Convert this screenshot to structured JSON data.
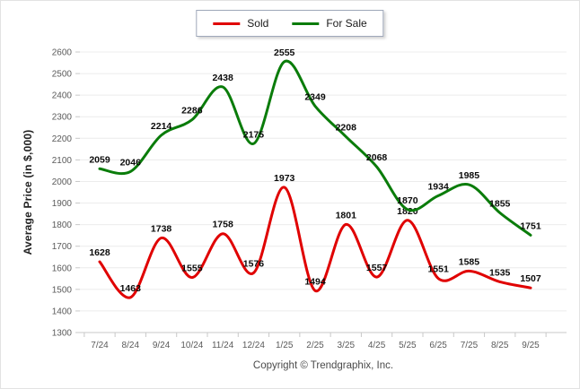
{
  "chart_data": {
    "type": "line",
    "title": "",
    "xlabel": "",
    "ylabel": "Average Price (in $,000)",
    "categories": [
      "7/24",
      "8/24",
      "9/24",
      "10/24",
      "11/24",
      "12/24",
      "1/25",
      "2/25",
      "3/25",
      "4/25",
      "5/25",
      "6/25",
      "7/25",
      "8/25",
      "9/25"
    ],
    "series": [
      {
        "name": "Sold",
        "color": "#e00000",
        "values": [
          1628,
          1463,
          1738,
          1555,
          1758,
          1576,
          1973,
          1494,
          1801,
          1557,
          1820,
          1551,
          1585,
          1535,
          1507
        ]
      },
      {
        "name": "For Sale",
        "color": "#0a7c0a",
        "values": [
          2059,
          2046,
          2214,
          2286,
          2438,
          2175,
          2555,
          2349,
          2208,
          2068,
          1870,
          1934,
          1985,
          1855,
          1751
        ]
      }
    ],
    "ylim": [
      1300,
      2600
    ],
    "ytick_step": 100,
    "grid": true,
    "legend_position": "top-center"
  },
  "legend": {
    "items": [
      {
        "label": "Sold",
        "color": "#e00000"
      },
      {
        "label": "For Sale",
        "color": "#0a7c0a"
      }
    ]
  },
  "footer": {
    "copyright": "Copyright © Trendgraphix, Inc."
  },
  "colors": {
    "sold_line": "#e00000",
    "for_sale_line": "#0a7c0a",
    "gridline": "#ececec",
    "axis_line": "#c8c8c8",
    "legend_border": "#9fa8ba"
  }
}
